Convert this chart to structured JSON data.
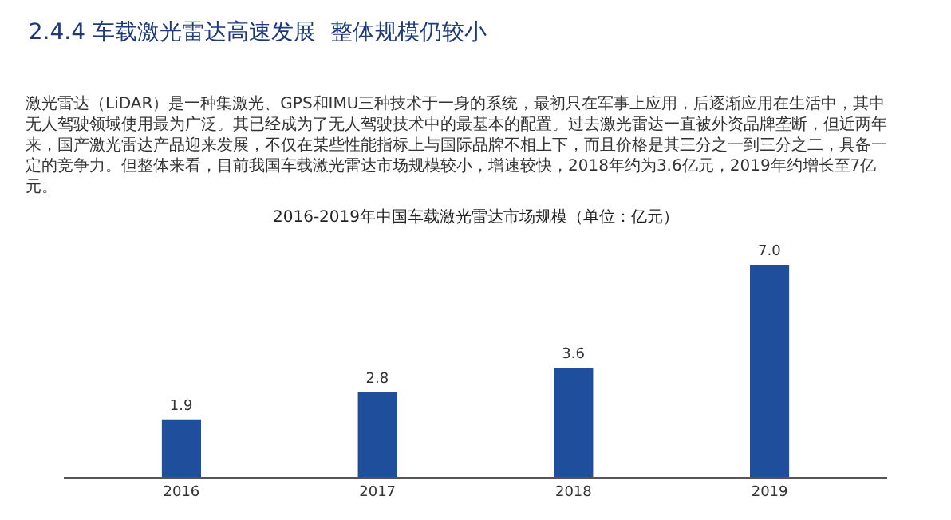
{
  "chart_data": {
    "type": "bar",
    "title": "2.4.4 车载激光雷达高速发展  整体规模仍较小",
    "subtitle": "2016-2019年中国车载激光雷达市场规模（单位：亿元）",
    "annotations": [
      "激光雷达（LiDAR）是一种集激光、GPS和IMU三种技术于一身的系统，最初只在军事上应用，后逐渐应用在生活中，其中无人驾驶领域使用最为广泛。其已经成为了无人驾驶技术中的最基本的配置。过去激光雷达一直被外资品牌垄断，但近两年来，国产激光雷达产品迎来发展，不仅在某些性能指标上与国际品牌不相上下，而且价格是其三分之一到三分之二，具备一定的竞争力。但整体来看，目前我国车载激光雷达市场规模较小，增速较快，2018年约为3.6亿元，2019年约增长至7亿元。"
    ],
    "categories": [
      "2016",
      "2017",
      "2018",
      "2019"
    ],
    "values": [
      1.9,
      2.8,
      3.6,
      7.0
    ],
    "value_labels": [
      "1.9",
      "2.8",
      "3.6",
      "7.0"
    ],
    "color": "#1f4e9c",
    "legend": false
  }
}
